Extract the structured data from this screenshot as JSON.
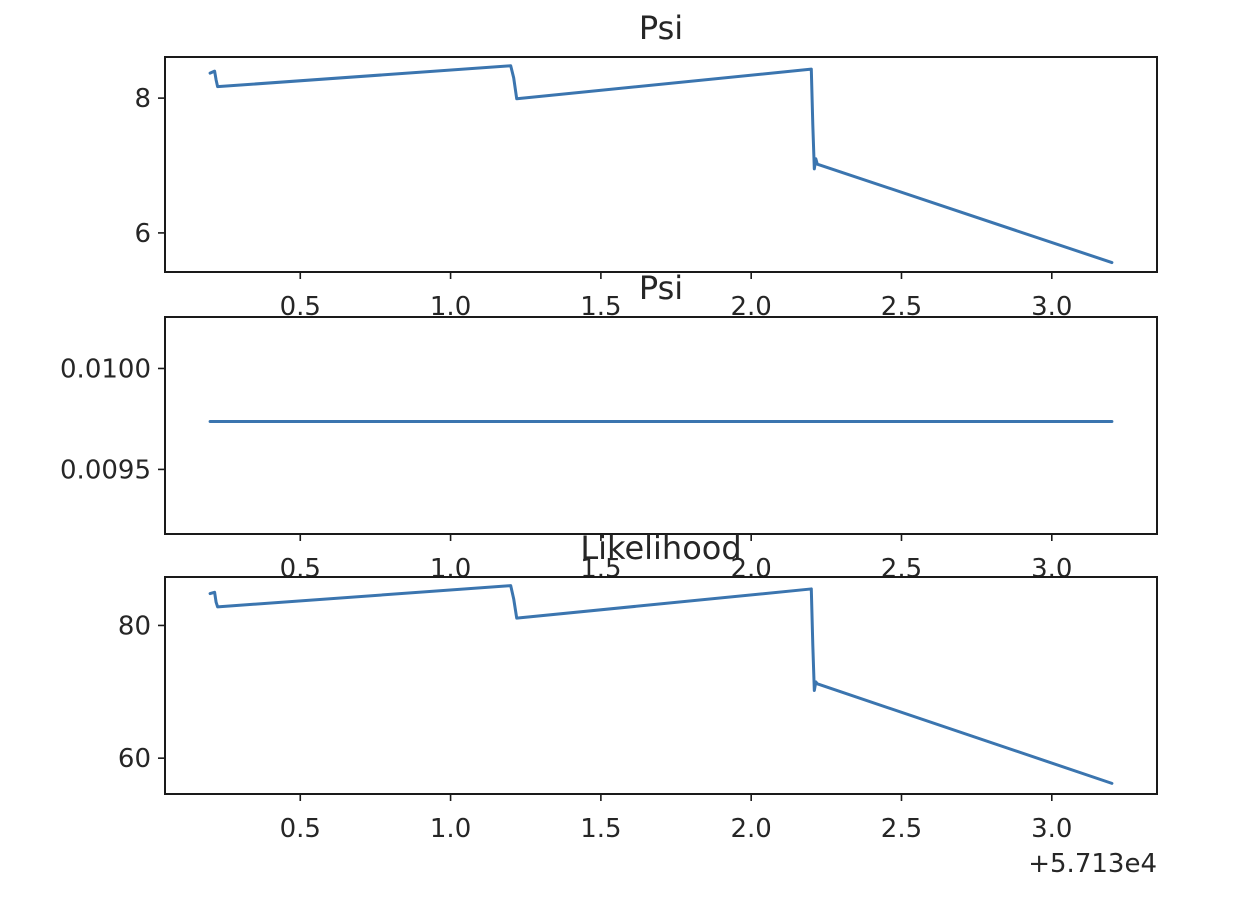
{
  "chart_data": [
    {
      "type": "line",
      "title": "Psi",
      "xlabel": "",
      "ylabel": "",
      "xlim": [
        57130.05,
        57133.35
      ],
      "ylim": [
        5.42,
        8.61
      ],
      "xticks": [
        57130.5,
        57131.0,
        57131.5,
        57132.0,
        57132.5,
        57133.0
      ],
      "xtick_labels": [
        "0.5",
        "1.0",
        "1.5",
        "2.0",
        "2.5",
        "3.0"
      ],
      "yticks": [
        6,
        8
      ],
      "ytick_labels": [
        "6",
        "8"
      ],
      "grid": false,
      "color": "#3b75af",
      "series": [
        {
          "x": [
            57130.2,
            57130.215,
            57130.22,
            57130.225,
            57131.2,
            57131.21,
            57131.22,
            57132.2,
            57132.205,
            57132.21,
            57132.215,
            57132.22,
            57133.2
          ],
          "y": [
            8.37,
            8.4,
            8.27,
            8.17,
            8.48,
            8.3,
            7.99,
            8.43,
            7.6,
            6.95,
            7.1,
            7.02,
            5.56
          ]
        }
      ]
    },
    {
      "type": "line",
      "title": "Psi",
      "xlabel": "",
      "ylabel": "",
      "xlim": [
        57130.05,
        57133.35
      ],
      "ylim": [
        0.00918,
        0.010255
      ],
      "xticks": [
        57130.5,
        57131.0,
        57131.5,
        57132.0,
        57132.5,
        57133.0
      ],
      "xtick_labels": [
        "0.5",
        "1.0",
        "1.5",
        "2.0",
        "2.5",
        "3.0"
      ],
      "yticks": [
        0.0095,
        0.01
      ],
      "ytick_labels": [
        "0.0095",
        "0.0100"
      ],
      "grid": false,
      "color": "#3b75af",
      "series": [
        {
          "x": [
            57130.2,
            57133.2
          ],
          "y": [
            0.009737,
            0.009737
          ]
        }
      ]
    },
    {
      "type": "line",
      "title": "Likelihood",
      "xlabel": "",
      "ylabel": "",
      "xlim": [
        57130.05,
        57133.35
      ],
      "ylim": [
        54.6,
        87.3
      ],
      "xticks": [
        57130.5,
        57131.0,
        57131.5,
        57132.0,
        57132.5,
        57133.0
      ],
      "xtick_labels": [
        "0.5",
        "1.0",
        "1.5",
        "2.0",
        "2.5",
        "3.0"
      ],
      "yticks": [
        60,
        80
      ],
      "ytick_labels": [
        "60",
        "80"
      ],
      "x_offset_label": "+5.713e4",
      "grid": false,
      "color": "#3b75af",
      "series": [
        {
          "x": [
            57130.2,
            57130.215,
            57130.22,
            57130.225,
            57131.2,
            57131.21,
            57131.22,
            57132.2,
            57132.205,
            57132.21,
            57132.215,
            57132.22,
            57133.2
          ],
          "y": [
            84.8,
            85.0,
            83.5,
            82.8,
            86.0,
            84.0,
            81.1,
            85.5,
            77.0,
            70.2,
            71.5,
            71.2,
            56.2
          ]
        }
      ]
    }
  ]
}
